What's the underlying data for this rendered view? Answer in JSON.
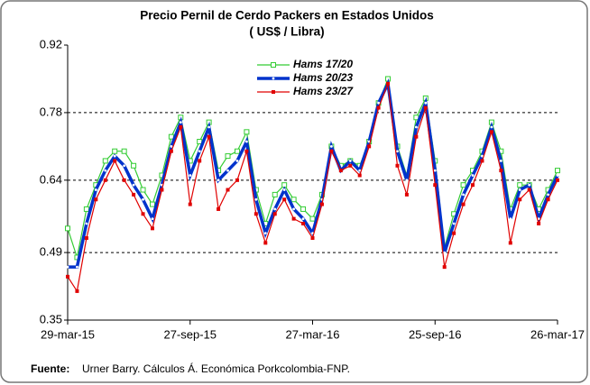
{
  "chart_data": {
    "type": "line",
    "title": "Precio Pernil de Cerdo Packers en Estados Unidos",
    "subtitle": "( US$ / Libra)",
    "source_label": "Fuente:",
    "source": "Urner Barry. Cálculos Á. Económica Porkcolombia-FNP.",
    "x": [
      "2015-03-29",
      "2015-04-12",
      "2015-04-26",
      "2015-05-10",
      "2015-05-24",
      "2015-06-07",
      "2015-06-21",
      "2015-07-05",
      "2015-07-19",
      "2015-08-02",
      "2015-08-16",
      "2015-08-30",
      "2015-09-13",
      "2015-09-27",
      "2015-10-11",
      "2015-10-25",
      "2015-11-08",
      "2015-11-22",
      "2015-12-06",
      "2015-12-20",
      "2016-01-03",
      "2016-01-17",
      "2016-01-31",
      "2016-02-14",
      "2016-02-28",
      "2016-03-13",
      "2016-03-27",
      "2016-04-10",
      "2016-04-24",
      "2016-05-08",
      "2016-05-22",
      "2016-06-05",
      "2016-06-19",
      "2016-07-03",
      "2016-07-17",
      "2016-07-31",
      "2016-08-14",
      "2016-08-28",
      "2016-09-11",
      "2016-09-25",
      "2016-10-09",
      "2016-10-23",
      "2016-11-06",
      "2016-11-20",
      "2016-12-04",
      "2016-12-18",
      "2017-01-01",
      "2017-01-15",
      "2017-01-29",
      "2017-02-12",
      "2017-02-26",
      "2017-03-12",
      "2017-03-26"
    ],
    "series": [
      {
        "name": "Hams 17/20",
        "color": "#33cc33",
        "values": [
          0.54,
          0.48,
          0.58,
          0.63,
          0.68,
          0.7,
          0.7,
          0.67,
          0.62,
          0.59,
          0.65,
          0.73,
          0.77,
          0.68,
          0.72,
          0.76,
          0.66,
          0.69,
          0.7,
          0.74,
          0.62,
          0.55,
          0.61,
          0.63,
          0.6,
          0.58,
          0.56,
          0.61,
          0.71,
          0.67,
          0.68,
          0.67,
          0.72,
          0.8,
          0.85,
          0.71,
          0.65,
          0.77,
          0.81,
          0.68,
          0.5,
          0.57,
          0.63,
          0.66,
          0.7,
          0.76,
          0.7,
          0.58,
          0.63,
          0.63,
          0.58,
          0.62,
          0.66
        ]
      },
      {
        "name": "Hams 20/23",
        "color": "#0033cc",
        "values": [
          0.46,
          0.46,
          0.55,
          0.62,
          0.66,
          0.69,
          0.67,
          0.63,
          0.6,
          0.56,
          0.63,
          0.71,
          0.76,
          0.65,
          0.7,
          0.75,
          0.64,
          0.66,
          0.68,
          0.72,
          0.6,
          0.53,
          0.58,
          0.62,
          0.58,
          0.56,
          0.53,
          0.6,
          0.71,
          0.66,
          0.68,
          0.66,
          0.72,
          0.8,
          0.84,
          0.7,
          0.64,
          0.75,
          0.8,
          0.66,
          0.49,
          0.55,
          0.61,
          0.65,
          0.69,
          0.75,
          0.68,
          0.56,
          0.62,
          0.63,
          0.56,
          0.61,
          0.65
        ]
      },
      {
        "name": "Hams 23/27",
        "color": "#e00000",
        "values": [
          0.44,
          0.41,
          0.52,
          0.6,
          0.64,
          0.68,
          0.64,
          0.61,
          0.57,
          0.54,
          0.62,
          0.7,
          0.75,
          0.59,
          0.68,
          0.73,
          0.58,
          0.62,
          0.64,
          0.7,
          0.57,
          0.51,
          0.57,
          0.6,
          0.56,
          0.55,
          0.52,
          0.59,
          0.7,
          0.66,
          0.67,
          0.65,
          0.71,
          0.79,
          0.84,
          0.67,
          0.61,
          0.73,
          0.79,
          0.63,
          0.46,
          0.53,
          0.59,
          0.63,
          0.68,
          0.74,
          0.66,
          0.51,
          0.6,
          0.62,
          0.55,
          0.6,
          0.64
        ]
      }
    ],
    "ylim": [
      0.35,
      0.92
    ],
    "yticks": [
      0.35,
      0.49,
      0.64,
      0.78,
      0.92
    ],
    "xlim": [
      "2015-03-29",
      "2017-03-26"
    ],
    "xticks": [
      {
        "value": "2015-03-29",
        "label": "29-mar-15"
      },
      {
        "value": "2015-09-27",
        "label": "27-sep-15"
      },
      {
        "value": "2016-03-27",
        "label": "27-mar-16"
      },
      {
        "value": "2016-09-25",
        "label": "25-sep-16"
      },
      {
        "value": "2017-03-26",
        "label": "26-mar-17"
      }
    ],
    "grid": true,
    "legend": "top"
  }
}
